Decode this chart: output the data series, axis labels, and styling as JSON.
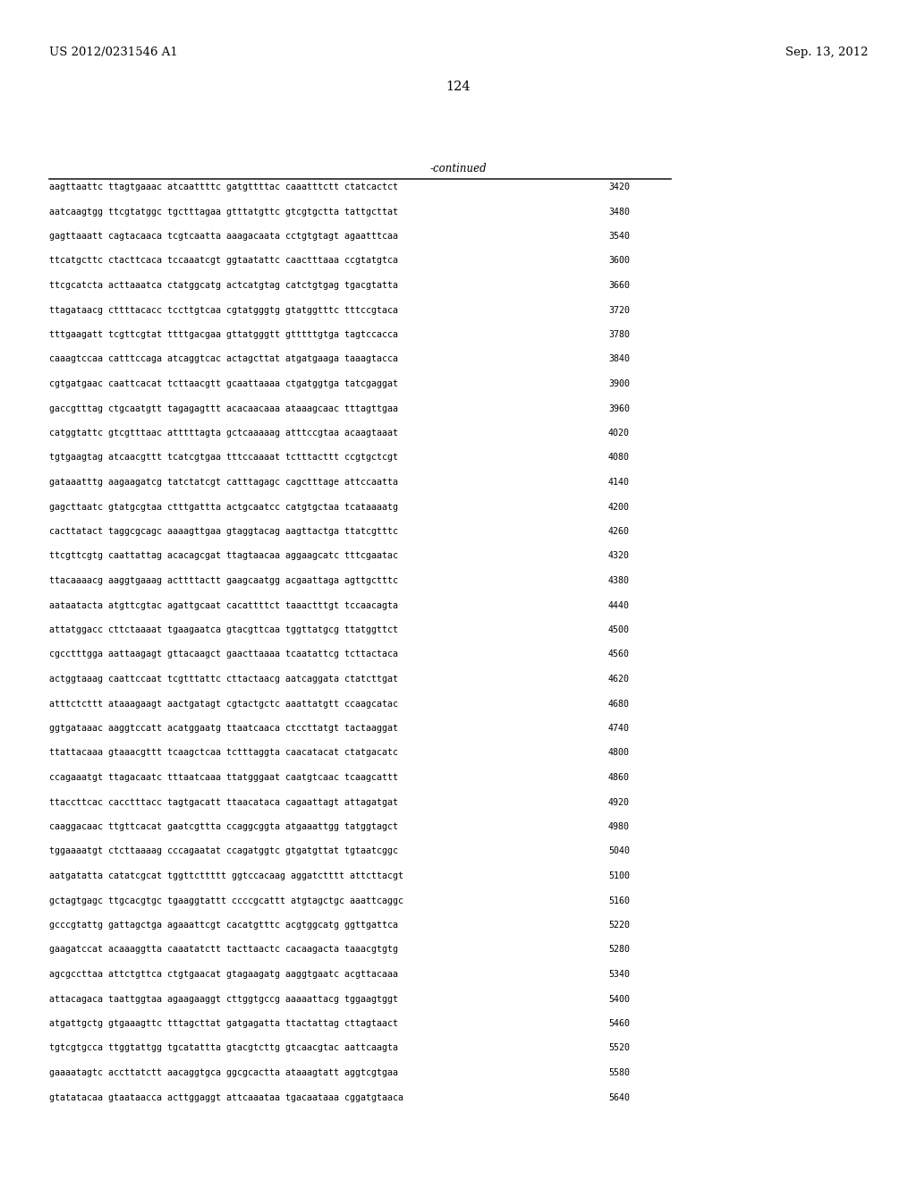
{
  "header_left": "US 2012/0231546 A1",
  "header_right": "Sep. 13, 2012",
  "page_number": "124",
  "continued_label": "-continued",
  "bg_color": "#ffffff",
  "text_color": "#000000",
  "seq_font_size": 7.2,
  "header_font_size": 9.5,
  "page_num_font_size": 10.5,
  "continued_font_size": 8.5,
  "sequences": [
    [
      "aagttaattc ttagtgaaac atcaattttc gatgttttac caaatttctt ctatcactct",
      "3420"
    ],
    [
      "aatcaagtgg ttcgtatggc tgctttagaa gtttatgttc gtcgtgctta tattgcttat",
      "3480"
    ],
    [
      "gagttaaatt cagtacaaca tcgtcaatta aaagacaata cctgtgtagt agaatttcaa",
      "3540"
    ],
    [
      "ttcatgcttc ctacttcaca tccaaatcgt ggtaatattc caactttaaa ccgtatgtca",
      "3600"
    ],
    [
      "ttcgcatcta acttaaatca ctatggcatg actcatgtag catctgtgag tgacgtatta",
      "3660"
    ],
    [
      "ttagataacg cttttacacc tccttgtcaa cgtatgggtg gtatggtttc tttccgtaca",
      "3720"
    ],
    [
      "tttgaagatt tcgttcgtat ttttgacgaa gttatgggtt gtttttgtga tagtccacca",
      "3780"
    ],
    [
      "caaagtccaa catttccaga atcaggtcac actagcttat atgatgaaga taaagtacca",
      "3840"
    ],
    [
      "cgtgatgaac caattcacat tcttaacgtt gcaattaaaa ctgatggtga tatcgaggat",
      "3900"
    ],
    [
      "gaccgtttag ctgcaatgtt tagagagttt acacaacaaa ataaagcaac tttagttgaa",
      "3960"
    ],
    [
      "catggtattc gtcgtttaac atttttagta gctcaaaaag atttccgtaa acaagtaaat",
      "4020"
    ],
    [
      "tgtgaagtag atcaacgttt tcatcgtgaa tttccaaaat tctttacttt ccgtgctcgt",
      "4080"
    ],
    [
      "gataaatttg aagaagatcg tatctatcgt catttagagc cagctttage attccaatta",
      "4140"
    ],
    [
      "gagcttaatc gtatgcgtaa ctttgattta actgcaatcc catgtgctaa tcataaaatg",
      "4200"
    ],
    [
      "cacttatact taggcgcagc aaaagttgaa gtaggtacag aagttactga ttatcgtttc",
      "4260"
    ],
    [
      "ttcgttcgtg caattattag acacagcgat ttagtaacaa aggaagcatc tttcgaatac",
      "4320"
    ],
    [
      "ttacaaaacg aaggtgaaag acttttactt gaagcaatgg acgaattaga agttgctttc",
      "4380"
    ],
    [
      "aataatacta atgttcgtac agattgcaat cacattttct taaactttgt tccaacagta",
      "4440"
    ],
    [
      "attatggacc cttctaaaat tgaagaatca gtacgttcaa tggttatgcg ttatggttct",
      "4500"
    ],
    [
      "cgcctttgga aattaagagt gttacaagct gaacttaaaa tcaatattcg tcttactaca",
      "4560"
    ],
    [
      "actggtaaag caattccaat tcgtttattc cttactaacg aatcaggata ctatcttgat",
      "4620"
    ],
    [
      "atttctcttt ataaagaagt aactgatagt cgtactgctc aaattatgtt ccaagcatac",
      "4680"
    ],
    [
      "ggtgataaac aaggtccatt acatggaatg ttaatcaaca ctccttatgt tactaaggat",
      "4740"
    ],
    [
      "ttattacaaa gtaaacgttt tcaagctcaa tctttaggta caacatacat ctatgacatc",
      "4800"
    ],
    [
      "ccagaaatgt ttagacaatc tttaatcaaa ttatgggaat caatgtcaac tcaagcattt",
      "4860"
    ],
    [
      "ttaccttcac cacctttacc tagtgacatt ttaacataca cagaattagt attagatgat",
      "4920"
    ],
    [
      "caaggacaac ttgttcacat gaatcgttta ccaggcggta atgaaattgg tatggtagct",
      "4980"
    ],
    [
      "tggaaaatgt ctcttaaaag cccagaatat ccagatggtc gtgatgttat tgtaatcggc",
      "5040"
    ],
    [
      "aatgatatta catatcgcat tggttcttttt ggtccacaag aggatctttt attcttacgt",
      "5100"
    ],
    [
      "gctagtgagc ttgcacgtgc tgaaggtattt ccccgcattt atgtagctgc aaattcaggc",
      "5160"
    ],
    [
      "gcccgtattg gattagctga agaaattcgt cacatgtttc acgtggcatg ggttgattca",
      "5220"
    ],
    [
      "gaagatccat acaaaggtta caaatatctt tacttaactc cacaagacta taaacgtgtg",
      "5280"
    ],
    [
      "agcgccttaa attctgttca ctgtgaacat gtagaagatg aaggtgaatc acgttacaaa",
      "5340"
    ],
    [
      "attacagaca taattggtaa agaagaaggt cttggtgccg aaaaattacg tggaagtggt",
      "5400"
    ],
    [
      "atgattgctg gtgaaagttc tttagcttat gatgagatta ttactattag cttagtaact",
      "5460"
    ],
    [
      "tgtcgtgcca ttggtattgg tgcatattta gtacgtcttg gtcaacgtac aattcaagta",
      "5520"
    ],
    [
      "gaaaatagtc accttatctt aacaggtgca ggcgcactta ataaagtatt aggtcgtgaa",
      "5580"
    ],
    [
      "gtatatacaa gtaataacca acttggaggt attcaaataa tgacaataaa cggatgtaaca",
      "5640"
    ]
  ]
}
